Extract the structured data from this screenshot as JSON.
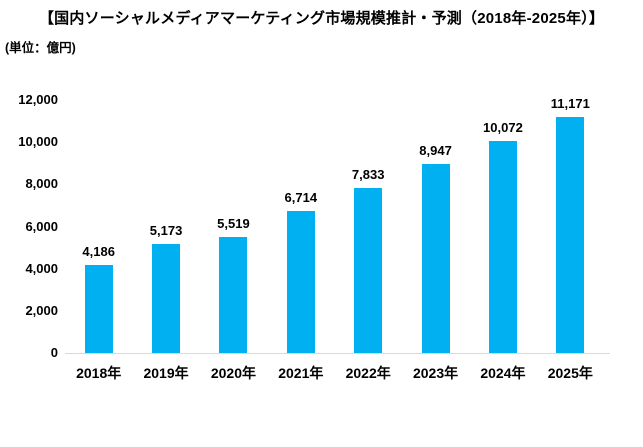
{
  "title": "【国内ソーシャルメディアマーケティング市場規模推計・予測（2018年-2025年）】",
  "unit_label": "(単位：億円)",
  "chart_data": {
    "type": "bar",
    "title": "【国内ソーシャルメディアマーケティング市場規模推計・予測（2018年-2025年）】",
    "unit": "(単位：億円)",
    "categories": [
      "2018年",
      "2019年",
      "2020年",
      "2021年",
      "2022年",
      "2023年",
      "2024年",
      "2025年"
    ],
    "values": [
      4186,
      5173,
      5519,
      6714,
      7833,
      8947,
      10072,
      11171
    ],
    "value_labels": [
      "4,186",
      "5,173",
      "5,519",
      "6,714",
      "7,833",
      "8,947",
      "10,072",
      "11,171"
    ],
    "xlabel": "",
    "ylabel": "(単位：億円)",
    "ylim": [
      0,
      12000
    ],
    "ytick_interval": 2000,
    "ytick_labels": [
      "0",
      "2,000",
      "4,000",
      "6,000",
      "8,000",
      "10,000",
      "12,000"
    ],
    "grid": false,
    "legend": false,
    "bar_color": "#00b0f0",
    "axis_line_color": "#d9d9d9",
    "text_color": "#000000"
  }
}
